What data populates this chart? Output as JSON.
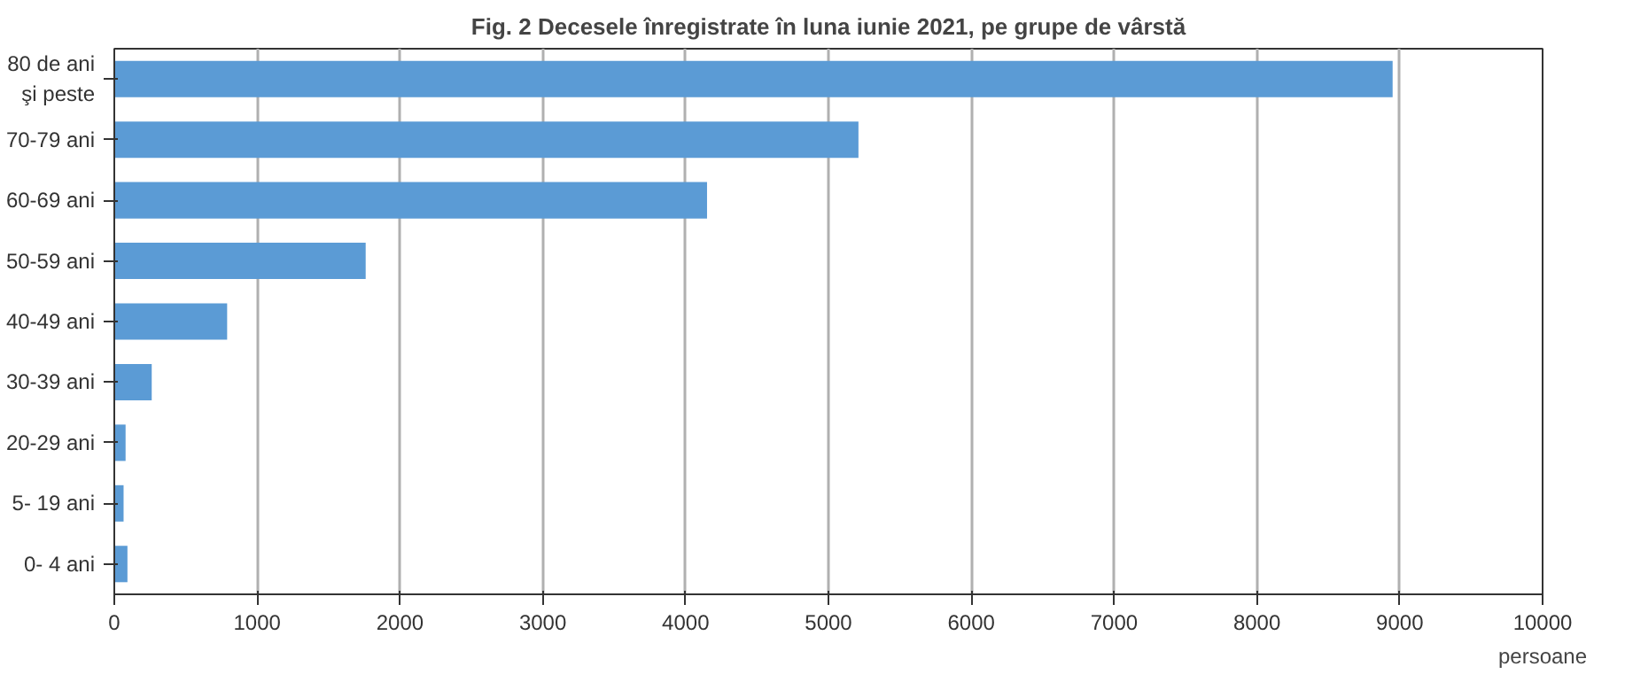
{
  "chart_data": {
    "type": "bar",
    "orientation": "horizontal",
    "title": "Fig. 2 Decesele înregistrate în luna iunie 2021, pe grupe de vârstă",
    "xlabel": "persoane",
    "categories": [
      "80 de ani\nşi peste",
      "70-79 ani",
      "60-69 ani",
      "50-59 ani",
      "40-49 ani",
      "30-39 ani",
      "20-29 ani",
      "5- 19 ani",
      "0- 4 ani"
    ],
    "values": [
      8950,
      5210,
      4150,
      1760,
      790,
      262,
      79,
      65,
      92
    ],
    "color": "#5b9bd5",
    "xlim": [
      0,
      10000
    ],
    "xticks": [
      0,
      1000,
      2000,
      3000,
      4000,
      5000,
      6000,
      7000,
      8000,
      9000,
      10000
    ],
    "grid": "x"
  }
}
